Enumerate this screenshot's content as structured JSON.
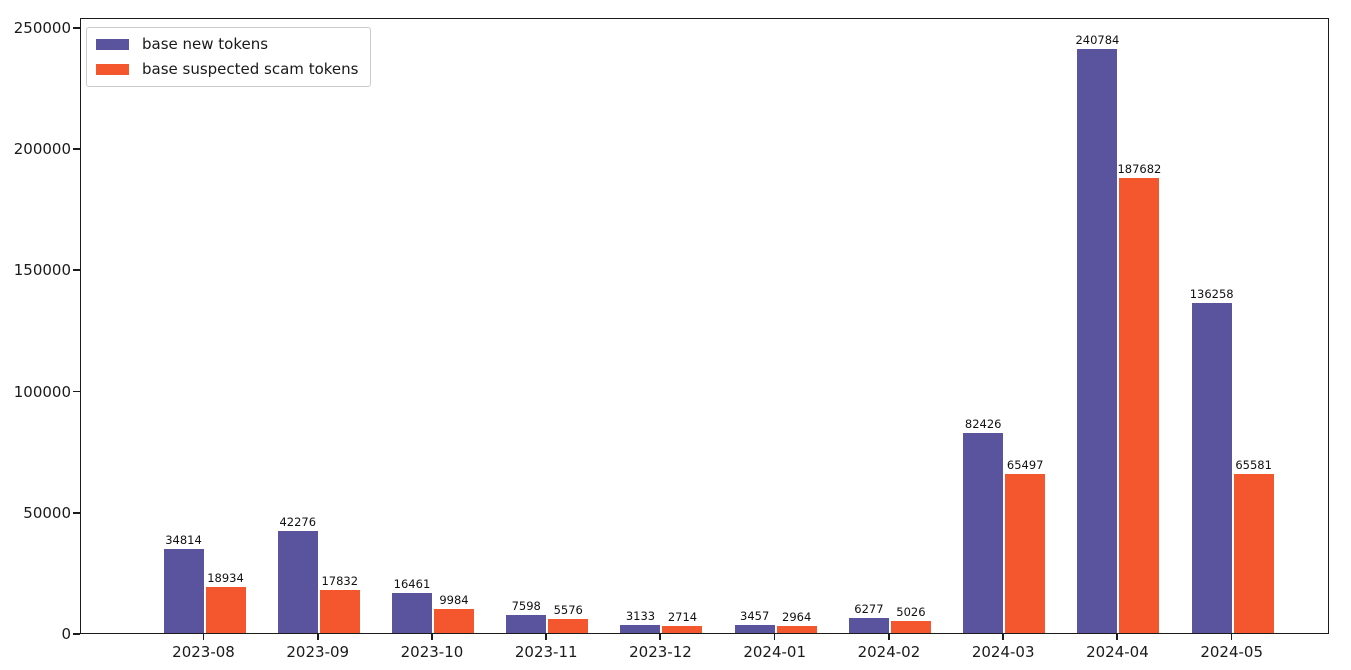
{
  "figure": {
    "background": "#ffffff",
    "frame_color": "#1c1c1c",
    "text_color": "#1a1a1a"
  },
  "chart_data": {
    "type": "bar",
    "title": "",
    "xlabel": "",
    "ylabel": "",
    "categories": [
      "2023-08",
      "2023-09",
      "2023-10",
      "2023-11",
      "2023-12",
      "2024-01",
      "2024-02",
      "2024-03",
      "2024-04",
      "2024-05"
    ],
    "series": [
      {
        "name": "base new tokens",
        "color": "#5a549e",
        "values": [
          34814,
          42276,
          16461,
          7598,
          3133,
          3457,
          6277,
          82426,
          240784,
          136258
        ]
      },
      {
        "name": "base suspected scam tokens",
        "color": "#f4572e",
        "values": [
          18934,
          17832,
          9984,
          5576,
          2714,
          2964,
          5026,
          65497,
          187682,
          65581
        ]
      }
    ],
    "ylim": [
      0,
      250000
    ],
    "yticks": [
      0,
      50000,
      100000,
      150000,
      200000,
      250000
    ],
    "grid": false,
    "legend_position": "upper-left",
    "bar_value_labels": true
  }
}
